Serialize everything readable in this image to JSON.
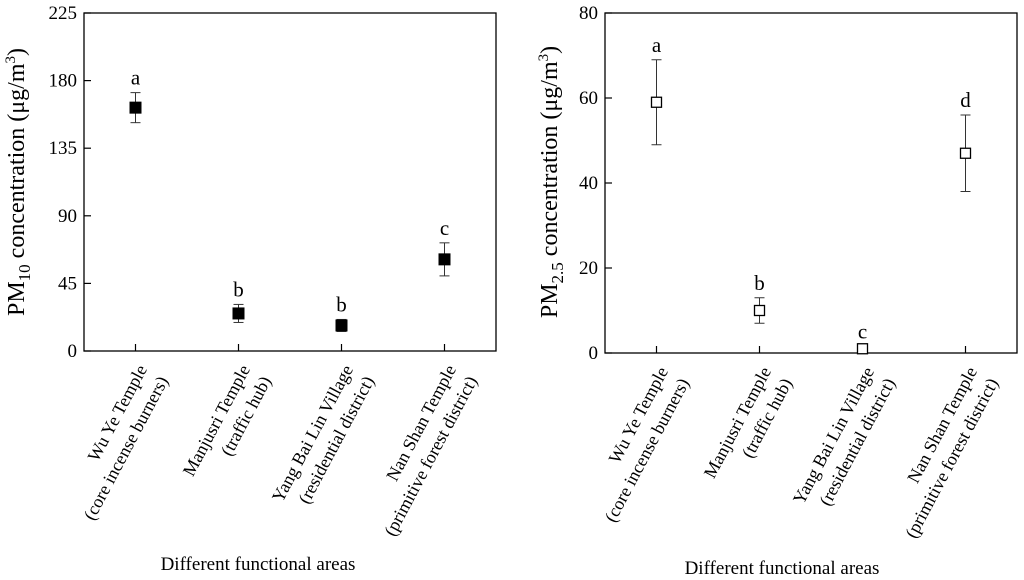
{
  "chart_data": [
    {
      "type": "scatter",
      "id": "pm10",
      "ylabel": {
        "prefix": "PM",
        "sub": "10",
        "mid": " concentration (μg/m",
        "sup": "3",
        "suffix": ")"
      },
      "xlabel": "Different functional areas",
      "ylim": [
        0,
        225
      ],
      "yticks": [
        0,
        45,
        90,
        135,
        180,
        225
      ],
      "marker": "filled-square",
      "categories": [
        {
          "line1": "Wu Ye Temple",
          "line2": "(core incense burners)"
        },
        {
          "line1": "Manjusri Temple",
          "line2": "(traffic hub)"
        },
        {
          "line1": "Yang Bai Lin Village",
          "line2": "(residential district)"
        },
        {
          "line1": "Nan Shan Temple",
          "line2": "(primitive forest district)"
        }
      ],
      "values": [
        162,
        25,
        17,
        61
      ],
      "error": [
        10,
        6,
        4,
        11
      ],
      "labels": [
        "a",
        "b",
        "b",
        "c"
      ]
    },
    {
      "type": "scatter",
      "id": "pm25",
      "ylabel": {
        "prefix": "PM",
        "sub": "2.5",
        "mid": " concentration (μg/m",
        "sup": "3",
        "suffix": ")"
      },
      "xlabel": "Different functional areas",
      "ylim": [
        0,
        80
      ],
      "yticks": [
        0,
        20,
        40,
        60,
        80
      ],
      "marker": "open-square",
      "categories": [
        {
          "line1": "Wu Ye Temple",
          "line2": "(core incense burners)"
        },
        {
          "line1": "Manjusri Temple",
          "line2": "(traffic hub)"
        },
        {
          "line1": "Yang Bai Lin Village",
          "line2": "(residential district)"
        },
        {
          "line1": "Nan Shan Temple",
          "line2": "(primitive forest district)"
        }
      ],
      "values": [
        59,
        10,
        1,
        47
      ],
      "error": [
        10,
        3,
        0.5,
        9
      ],
      "labels": [
        "a",
        "b",
        "c",
        "d"
      ]
    }
  ]
}
